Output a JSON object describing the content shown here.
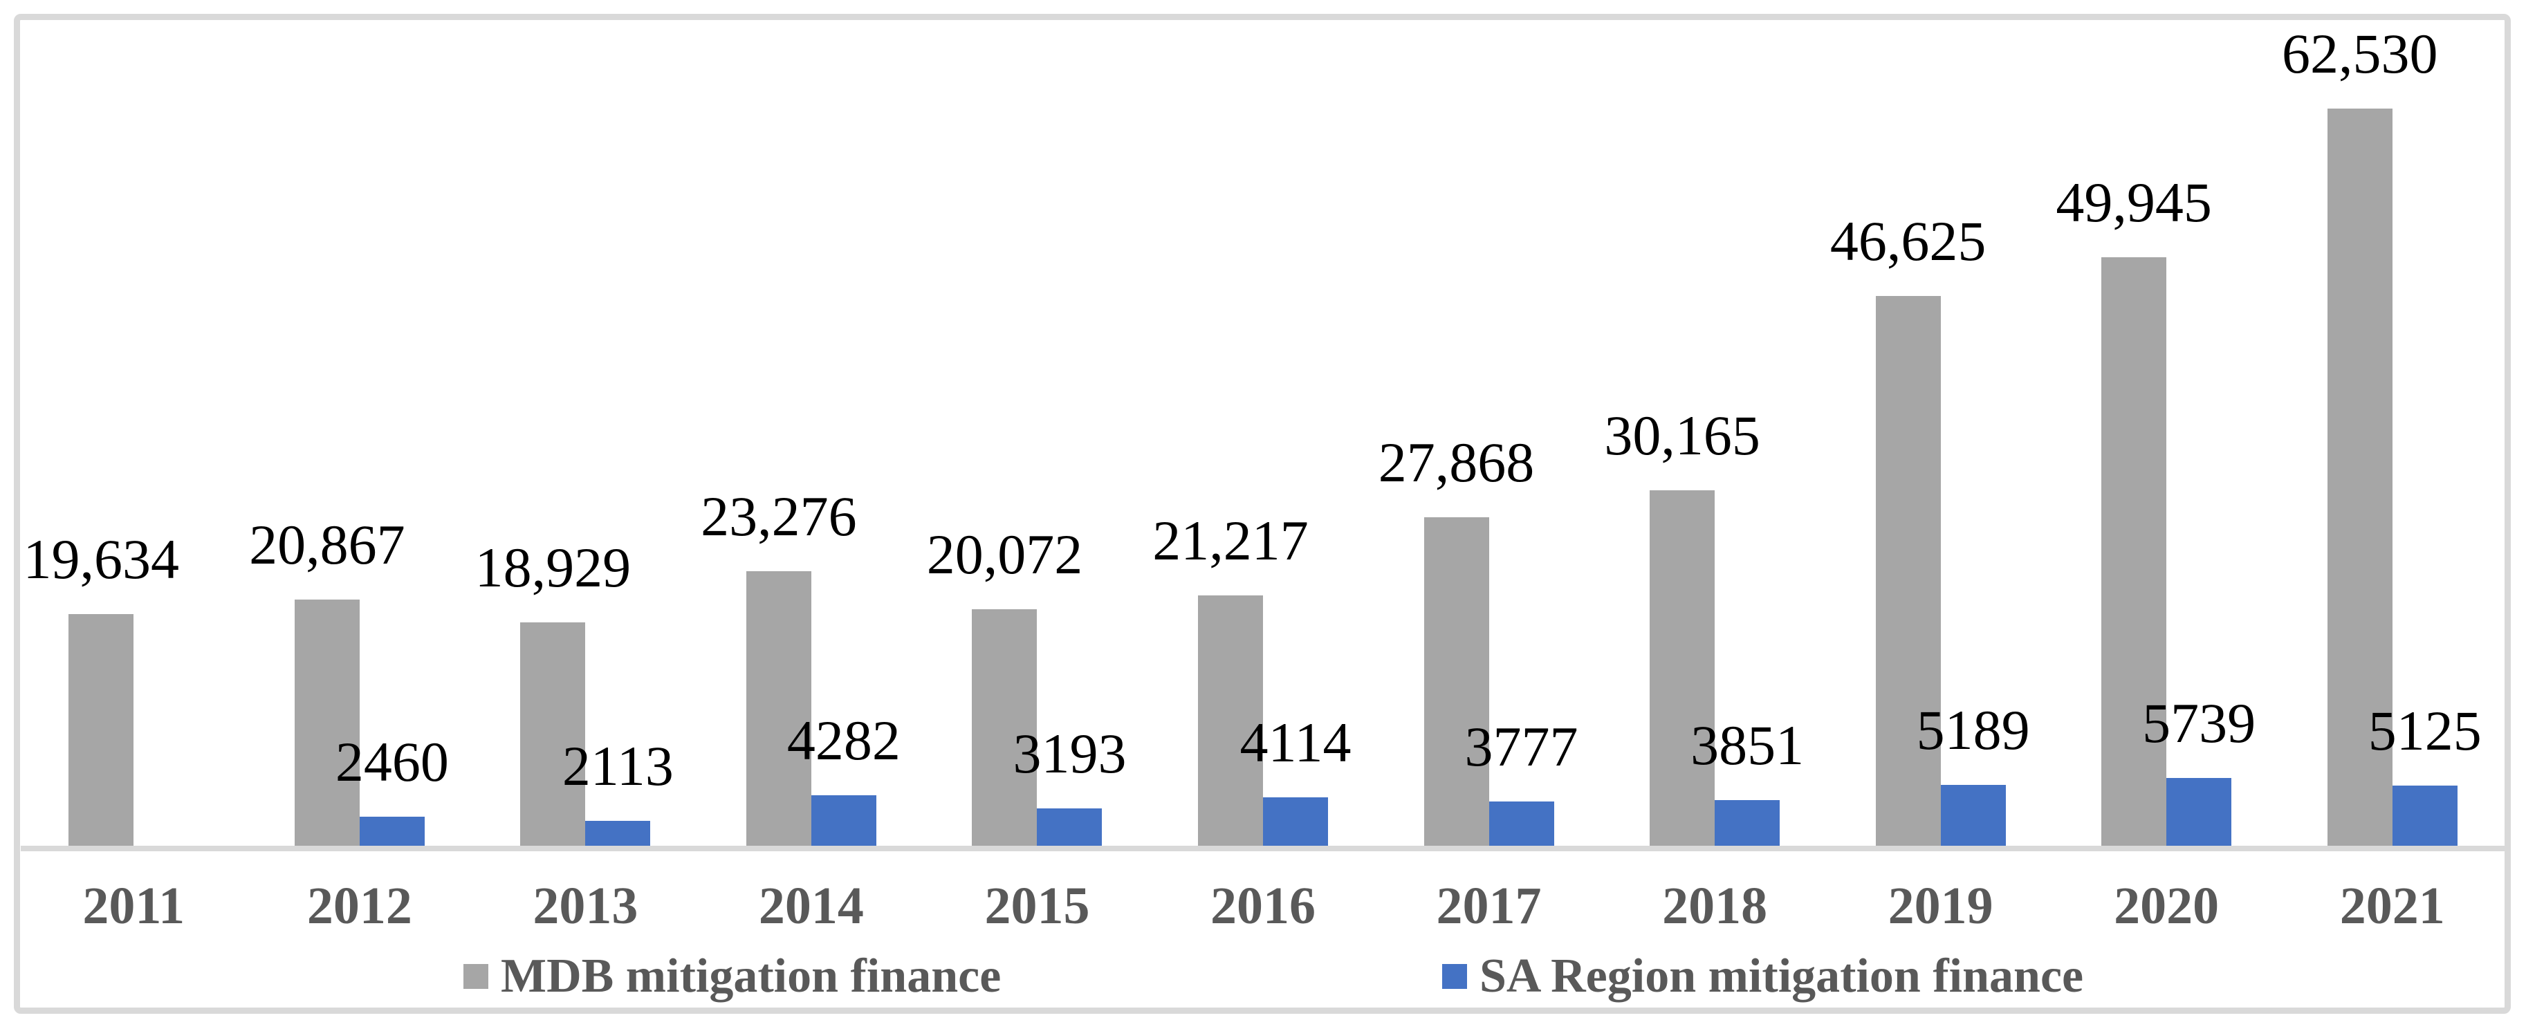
{
  "chart_data": {
    "type": "bar",
    "categories": [
      "2011",
      "2012",
      "2013",
      "2014",
      "2015",
      "2016",
      "2017",
      "2018",
      "2019",
      "2020",
      "2021"
    ],
    "series": [
      {
        "name": "MDB mitigation finance",
        "color": "#a6a6a6",
        "values": [
          19634,
          20867,
          18929,
          23276,
          20072,
          21217,
          27868,
          30165,
          46625,
          49945,
          62530
        ],
        "labels": [
          "19,634",
          "20,867",
          "18,929",
          "23,276",
          "20,072",
          "21,217",
          "27,868",
          "30,165",
          "46,625",
          "49,945",
          "62,530"
        ]
      },
      {
        "name": "SA Region mitigation finance",
        "color": "#4472c4",
        "values": [
          null,
          2460,
          2113,
          4282,
          3193,
          4114,
          3777,
          3851,
          5189,
          5739,
          5125
        ],
        "labels": [
          "",
          "2460",
          "2113",
          "4282",
          "3193",
          "4114",
          "3777",
          "3851",
          "5189",
          "5739",
          "5125"
        ]
      }
    ],
    "title": "",
    "xlabel": "",
    "ylabel": "",
    "ylim": [
      0,
      62530
    ],
    "grid": false,
    "y_axis_visible": false,
    "data_labels": true,
    "legend_position": "bottom"
  },
  "colors": {
    "frame_border": "#d9d9d9",
    "axis_line": "#d9d9d9",
    "category_text": "#595959",
    "legend_text": "#595959",
    "data_label_text": "#000000",
    "background": "#ffffff"
  }
}
